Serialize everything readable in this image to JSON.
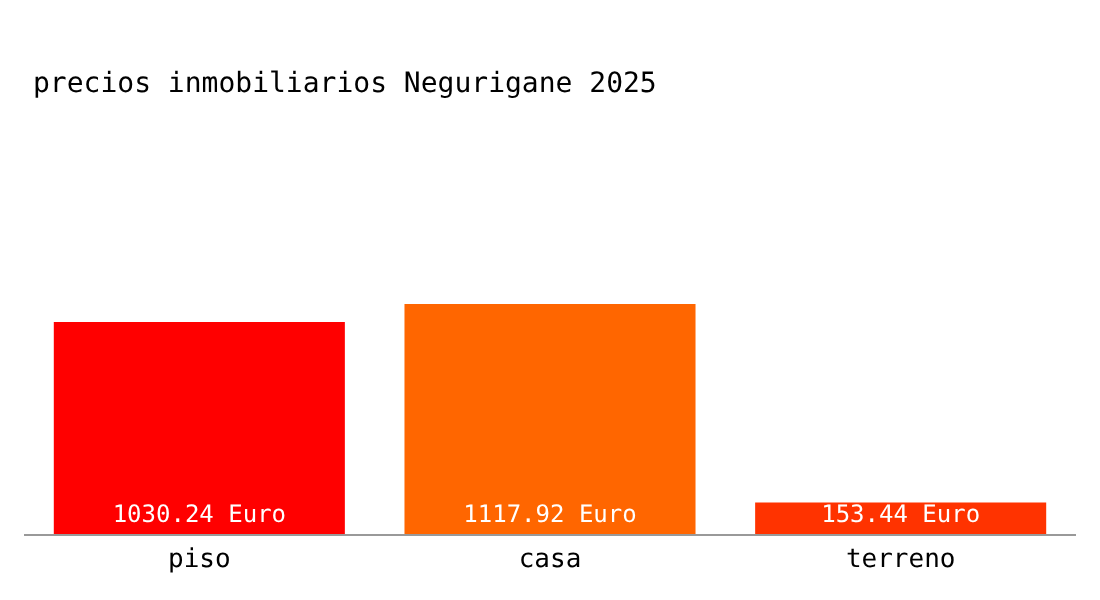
{
  "chart_data": {
    "type": "bar",
    "title": "precios inmobiliarios Negurigane 2025",
    "categories": [
      "piso",
      "casa",
      "terreno"
    ],
    "values": [
      1030.24,
      1117.92,
      153.44
    ],
    "value_labels": [
      "1030.24 Euro",
      "1117.92 Euro",
      "153.44 Euro"
    ],
    "colors": [
      "#ff0000",
      "#ff6600",
      "#ff3300"
    ]
  }
}
